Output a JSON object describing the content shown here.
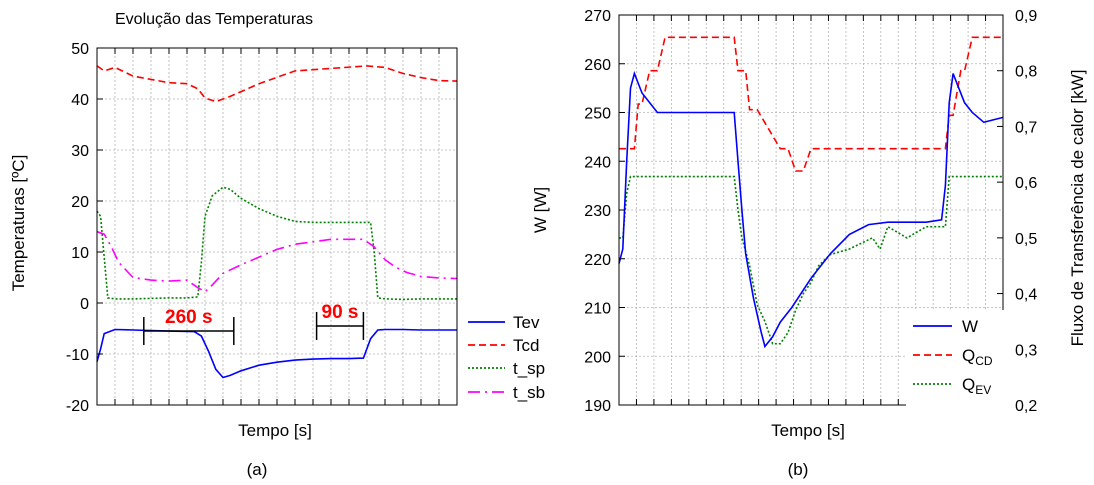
{
  "chart_data": [
    {
      "type": "line",
      "title": "Evolução das Temperaturas",
      "panel_label": "(a)",
      "xlabel": "Tempo [s]",
      "ylabel": "Temperaturas [ºC]",
      "ylim": [
        -20,
        50
      ],
      "yticks": [
        "-20",
        "-10",
        "0",
        "10",
        "20",
        "30",
        "40",
        "50"
      ],
      "xlim": [
        0,
        100
      ],
      "grid": true,
      "legend_position": "outside-right-bottom",
      "annotations": [
        {
          "text": "260 s",
          "x1": 13,
          "x2": 38,
          "y": -5.5
        },
        {
          "text": "90 s",
          "x1": 61,
          "x2": 74,
          "y": -4.5
        }
      ],
      "series": [
        {
          "name": "Tev",
          "color": "#0000ff",
          "style": "solid",
          "x": [
            0,
            1,
            2,
            5,
            10,
            20,
            27,
            29,
            31,
            33,
            35,
            37,
            40,
            45,
            50,
            55,
            60,
            65,
            70,
            74,
            76,
            78,
            80,
            85,
            90,
            95,
            100
          ],
          "y": [
            -11.5,
            -9,
            -6,
            -5.2,
            -5.3,
            -5.5,
            -5.6,
            -6.5,
            -9.5,
            -13,
            -14.6,
            -14.2,
            -13.3,
            -12.2,
            -11.6,
            -11.2,
            -11,
            -10.9,
            -10.9,
            -10.8,
            -7,
            -5.3,
            -5.2,
            -5.2,
            -5.3,
            -5.3,
            -5.3
          ]
        },
        {
          "name": "Tcd",
          "color": "#ff0000",
          "style": "dashed",
          "x": [
            0,
            2,
            5,
            10,
            20,
            25,
            28,
            30,
            33,
            37,
            45,
            55,
            65,
            75,
            80,
            85,
            90,
            95,
            100
          ],
          "y": [
            46.5,
            45.5,
            46.2,
            44.5,
            43.2,
            43,
            42,
            40.2,
            39.5,
            40.5,
            43,
            45.5,
            46,
            46.5,
            46.2,
            45,
            44.2,
            43.6,
            43.5
          ]
        },
        {
          "name": "t_sp",
          "color": "#008000",
          "style": "dotted",
          "x": [
            0,
            1,
            2,
            3,
            5,
            10,
            20,
            25,
            28,
            29,
            30,
            32,
            35,
            37,
            40,
            45,
            50,
            55,
            60,
            65,
            70,
            76,
            77,
            78,
            80,
            85,
            90,
            95,
            100
          ],
          "y": [
            18,
            17,
            9,
            1,
            0.8,
            0.8,
            1,
            1,
            1.2,
            8,
            17,
            21,
            22.7,
            22.3,
            20.5,
            18.5,
            17,
            16,
            15.8,
            15.8,
            15.8,
            15.8,
            10,
            1,
            0.8,
            0.7,
            0.8,
            0.8,
            0.8
          ]
        },
        {
          "name": "t_sb",
          "color": "#ff00ff",
          "style": "dashdot",
          "x": [
            0,
            2,
            4,
            6,
            10,
            15,
            20,
            25,
            28,
            30,
            32,
            35,
            40,
            45,
            50,
            55,
            60,
            65,
            70,
            74,
            77,
            80,
            83,
            86,
            90,
            95,
            100
          ],
          "y": [
            14,
            13.5,
            11,
            8,
            5,
            4.5,
            4.3,
            4.5,
            3,
            2.2,
            3.5,
            5.8,
            7.5,
            9,
            10.5,
            11.5,
            12,
            12.5,
            12.5,
            12.5,
            11,
            8.5,
            7,
            6,
            5.2,
            4.9,
            4.8
          ]
        }
      ]
    },
    {
      "type": "line",
      "panel_label": "(b)",
      "xlabel": "Tempo [s]",
      "ylabel_left": "W [W]",
      "ylabel_right": "Fluxo de Transferência de calor [kW]",
      "ylim_left": [
        190,
        270
      ],
      "ylim_right": [
        0.2,
        0.9
      ],
      "yticks_left": [
        "190",
        "200",
        "210",
        "220",
        "230",
        "240",
        "250",
        "260",
        "270"
      ],
      "yticks_right": [
        "0,2",
        "0,3",
        "0,4",
        "0,5",
        "0,6",
        "0,7",
        "0,8",
        "0,9"
      ],
      "xlim": [
        0,
        100
      ],
      "grid": true,
      "legend_position": "bottom-right",
      "series": [
        {
          "name": "W",
          "axis": "left",
          "color": "#0000ff",
          "style": "solid",
          "x": [
            0,
            1,
            2,
            3,
            4,
            6,
            10,
            20,
            30,
            31,
            32,
            33,
            35,
            37,
            38,
            40,
            42,
            45,
            50,
            55,
            60,
            65,
            70,
            80,
            84,
            85,
            86,
            87,
            88,
            90,
            92,
            95,
            100
          ],
          "y": [
            219,
            222,
            240,
            255,
            258,
            254,
            250,
            250,
            250,
            240,
            230,
            221,
            212,
            205,
            202,
            204,
            207,
            210,
            216,
            221,
            225,
            227,
            227.5,
            227.5,
            228,
            235,
            252,
            258,
            256,
            252,
            250,
            248,
            249
          ]
        },
        {
          "name": "Q_CD",
          "label_main": "Q",
          "label_sub": "CD",
          "axis": "right",
          "color": "#ff0000",
          "style": "dashed",
          "x": [
            0,
            2,
            4,
            5,
            6,
            8,
            10,
            12,
            14,
            30,
            31,
            33,
            34,
            36,
            42,
            44,
            46,
            48,
            50,
            52,
            60,
            70,
            85,
            86,
            87,
            89,
            90,
            92,
            100
          ],
          "y": [
            0.66,
            0.66,
            0.66,
            0.74,
            0.74,
            0.8,
            0.8,
            0.86,
            0.86,
            0.86,
            0.8,
            0.8,
            0.73,
            0.73,
            0.66,
            0.66,
            0.62,
            0.62,
            0.66,
            0.66,
            0.66,
            0.66,
            0.66,
            0.72,
            0.72,
            0.8,
            0.8,
            0.86,
            0.86
          ]
        },
        {
          "name": "Q_EV",
          "label_main": "Q",
          "label_sub": "EV",
          "axis": "right",
          "color": "#008000",
          "style": "dotted",
          "x": [
            0,
            1,
            2,
            3,
            30,
            31,
            32,
            34,
            36,
            38,
            40,
            42,
            44,
            46,
            48,
            50,
            52,
            55,
            60,
            66,
            68,
            70,
            75,
            80,
            85,
            86,
            87,
            88,
            100
          ],
          "y": [
            0.5,
            0.5,
            0.58,
            0.61,
            0.61,
            0.55,
            0.5,
            0.45,
            0.38,
            0.35,
            0.31,
            0.31,
            0.33,
            0.37,
            0.4,
            0.42,
            0.45,
            0.47,
            0.48,
            0.5,
            0.48,
            0.52,
            0.5,
            0.52,
            0.52,
            0.61,
            0.61,
            0.61,
            0.61
          ]
        }
      ]
    }
  ]
}
